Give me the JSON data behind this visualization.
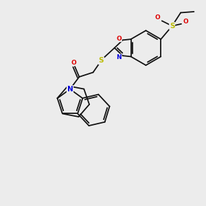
{
  "bg": "#ececec",
  "bc": "#111111",
  "nc": "#0000dd",
  "oc": "#dd0000",
  "sc": "#bbbb00",
  "lw": 1.3,
  "fs": 6.5,
  "figsize": [
    3.0,
    3.0
  ],
  "dpi": 100,
  "xlim": [
    -1.5,
    8.5
  ],
  "ylim": [
    -1.5,
    8.5
  ]
}
